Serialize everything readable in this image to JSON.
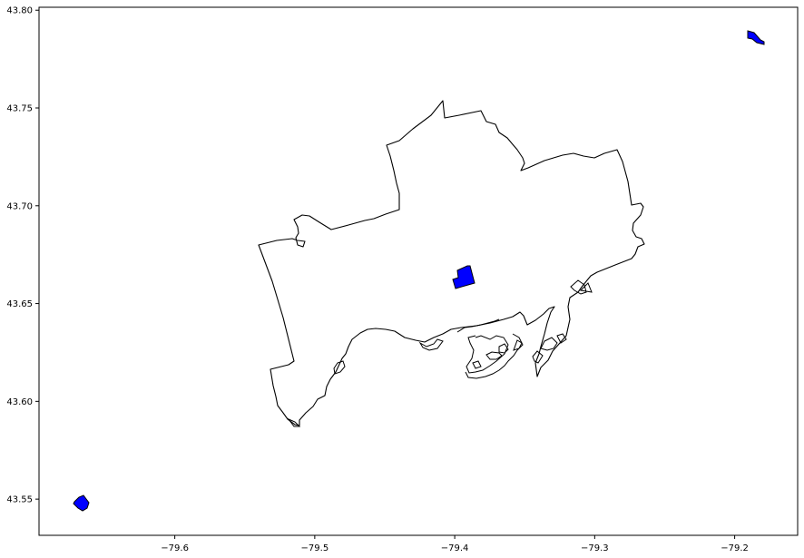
{
  "map": {
    "x_ticks": [
      {
        "value": -79.6,
        "label": "−79.6"
      },
      {
        "value": -79.5,
        "label": "−79.5"
      },
      {
        "value": -79.4,
        "label": "−79.4"
      },
      {
        "value": -79.3,
        "label": "−79.3"
      },
      {
        "value": -79.2,
        "label": "−79.2"
      }
    ],
    "y_ticks": [
      {
        "value": 43.55,
        "label": "43.55"
      },
      {
        "value": 43.6,
        "label": "43.60"
      },
      {
        "value": 43.65,
        "label": "43.65"
      },
      {
        "value": 43.7,
        "label": "43.70"
      },
      {
        "value": 43.75,
        "label": "43.75"
      },
      {
        "value": 43.8,
        "label": "43.80"
      }
    ],
    "xlim": [
      -79.697,
      -79.155
    ],
    "ylim": [
      43.5315,
      43.8015
    ],
    "colors": {
      "boundary": "#000000",
      "highlight_fill": "#0000ff",
      "background": "#ffffff"
    }
  }
}
